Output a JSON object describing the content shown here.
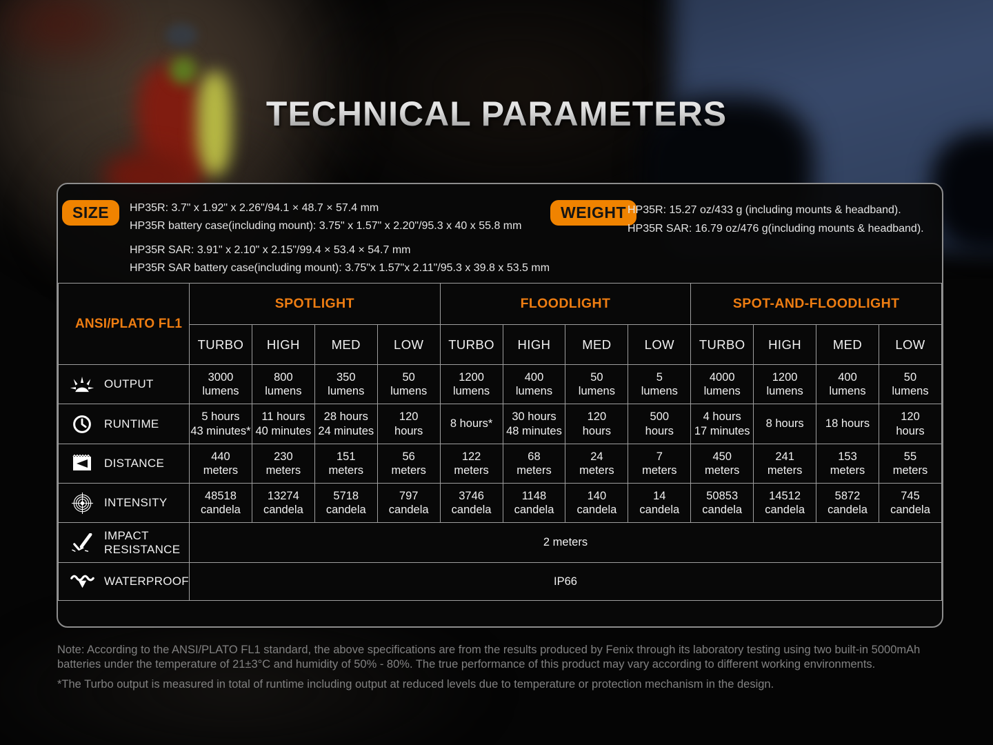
{
  "page": {
    "title": "TECHNICAL PARAMETERS"
  },
  "specs": {
    "size": {
      "badge": "SIZE",
      "lines": [
        "HP35R: 3.7\" x 1.92\" x 2.26\"/94.1 × 48.7 × 57.4 mm",
        "HP35R battery case(including mount): 3.75\" x 1.57\" x 2.20\"/95.3 x 40 x 55.8 mm",
        "HP35R SAR: 3.91\" x 2.10\" x 2.15\"/99.4 × 53.4 × 54.7 mm",
        "HP35R SAR battery case(including mount): 3.75\"x 1.57\"x 2.11\"/95.3 x 39.8 x 53.5 mm"
      ]
    },
    "weight": {
      "badge": "WEIGHT",
      "lines": [
        "HP35R: 15.27 oz/433 g (including mounts & headband).",
        "HP35R SAR: 16.79 oz/476 g(including mounts & headband)."
      ]
    }
  },
  "table": {
    "corner_label": "ANSI/PLATO FL1",
    "groups": [
      {
        "label": "SPOTLIGHT"
      },
      {
        "label": "FLOODLIGHT"
      },
      {
        "label": "SPOT-AND-FLOODLIGHT"
      }
    ],
    "modes": [
      "TURBO",
      "HIGH",
      "MED",
      "LOW",
      "TURBO",
      "HIGH",
      "MED",
      "LOW",
      "TURBO",
      "HIGH",
      "MED",
      "LOW"
    ],
    "rows": [
      {
        "label": "OUTPUT",
        "icon": "light-output-icon",
        "cells": [
          [
            "3000",
            "lumens"
          ],
          [
            "800",
            "lumens"
          ],
          [
            "350",
            "lumens"
          ],
          [
            "50",
            "lumens"
          ],
          [
            "1200",
            "lumens"
          ],
          [
            "400",
            "lumens"
          ],
          [
            "50",
            "lumens"
          ],
          [
            "5",
            "lumens"
          ],
          [
            "4000",
            "lumens"
          ],
          [
            "1200",
            "lumens"
          ],
          [
            "400",
            "lumens"
          ],
          [
            "50",
            "lumens"
          ]
        ]
      },
      {
        "label": "RUNTIME",
        "icon": "clock-icon",
        "cells": [
          [
            "5 hours",
            "43 minutes*"
          ],
          [
            "11 hours",
            "40 minutes"
          ],
          [
            "28 hours",
            "24 minutes"
          ],
          [
            "120",
            "hours"
          ],
          [
            "8 hours*"
          ],
          [
            "30 hours",
            "48 minutes"
          ],
          [
            "120",
            "hours"
          ],
          [
            "500",
            "hours"
          ],
          [
            "4 hours",
            "17 minutes"
          ],
          [
            "8 hours"
          ],
          [
            "18 hours"
          ],
          [
            "120",
            "hours"
          ]
        ]
      },
      {
        "label": "DISTANCE",
        "icon": "distance-icon",
        "cells": [
          [
            "440",
            "meters"
          ],
          [
            "230",
            "meters"
          ],
          [
            "151",
            "meters"
          ],
          [
            "56",
            "meters"
          ],
          [
            "122",
            "meters"
          ],
          [
            "68",
            "meters"
          ],
          [
            "24",
            "meters"
          ],
          [
            "7",
            "meters"
          ],
          [
            "450",
            "meters"
          ],
          [
            "241",
            "meters"
          ],
          [
            "153",
            "meters"
          ],
          [
            "55",
            "meters"
          ]
        ]
      },
      {
        "label": "INTENSITY",
        "icon": "intensity-icon",
        "cells": [
          [
            "48518",
            "candela"
          ],
          [
            "13274",
            "candela"
          ],
          [
            "5718",
            "candela"
          ],
          [
            "797",
            "candela"
          ],
          [
            "3746",
            "candela"
          ],
          [
            "1148",
            "candela"
          ],
          [
            "140",
            "candela"
          ],
          [
            "14",
            "candela"
          ],
          [
            "50853",
            "candela"
          ],
          [
            "14512",
            "candela"
          ],
          [
            "5872",
            "candela"
          ],
          [
            "745",
            "candela"
          ]
        ]
      },
      {
        "label": "IMPACT RESISTANCE",
        "icon": "impact-resistance-icon",
        "span_value": "2 meters"
      },
      {
        "label": "WATERPROOF",
        "icon": "waterproof-icon",
        "span_value": "IP66"
      }
    ]
  },
  "notes": {
    "note_lines": [
      "Note: According to the ANSI/PLATO FL1 standard, the above specifications are from the results produced by Fenix through its laboratory testing using two built-in 5000mAh",
      "batteries under the temperature of 21±3°C and humidity of 50% - 80%. The true performance of this product may vary according to different working environments."
    ],
    "footnote": "*The Turbo output is measured in total of runtime including output at reduced levels due to temperature or protection mechanism in the design."
  },
  "colors": {
    "accent_orange": "#f08300",
    "header_orange": "#ee7d12",
    "grid_gray": "#9f9f9f",
    "panel_border": "#8d8d8d",
    "note_gray": "#818181",
    "sky_blue": "#38496a"
  }
}
